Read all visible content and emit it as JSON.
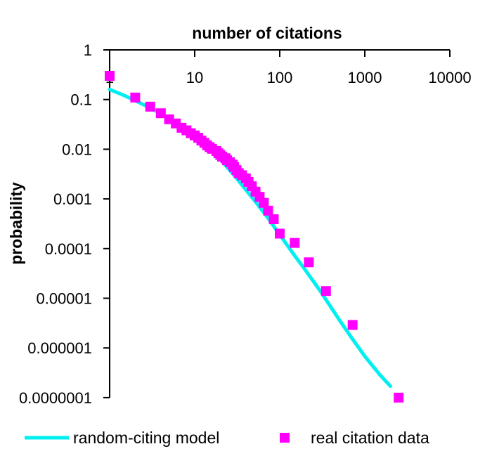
{
  "chart_data": {
    "type": "scatter",
    "xlabel": "number of citations",
    "ylabel": "probability",
    "xscale": "log",
    "yscale": "log",
    "xlim": [
      1,
      10000
    ],
    "ylim": [
      1e-07,
      1
    ],
    "x_axis_position": "top",
    "grid": false,
    "legend_position": "bottom",
    "x_tick_labels": [
      "1",
      "10",
      "100",
      "1000",
      "10000"
    ],
    "y_tick_labels": [
      "1",
      "0.1",
      "0.01",
      "0.001",
      "0.0001",
      "0.00001",
      "0.000001",
      "0.0000001"
    ],
    "series": [
      {
        "name": "random-citing model",
        "kind": "line",
        "color": "#00f0f0",
        "points": [
          [
            1,
            0.16
          ],
          [
            1.5,
            0.12
          ],
          [
            2,
            0.095
          ],
          [
            3,
            0.068
          ],
          [
            4,
            0.052
          ],
          [
            5,
            0.042
          ],
          [
            7,
            0.029
          ],
          [
            10,
            0.019
          ],
          [
            14,
            0.0115
          ],
          [
            20,
            0.0063
          ],
          [
            30,
            0.0028
          ],
          [
            50,
            0.00095
          ],
          [
            70,
            0.00045
          ],
          [
            100,
            0.00019
          ],
          [
            150,
            7.2e-05
          ],
          [
            200,
            3.7e-05
          ],
          [
            300,
            1.4e-05
          ],
          [
            500,
            3.7e-06
          ],
          [
            700,
            1.6e-06
          ],
          [
            1000,
            6.8e-07
          ],
          [
            1500,
            2.9e-07
          ],
          [
            2000,
            1.7e-07
          ]
        ]
      },
      {
        "name": "real citation data",
        "kind": "scatter",
        "color": "#ff00ff",
        "points": [
          [
            1,
            0.3
          ],
          [
            2,
            0.11
          ],
          [
            3,
            0.072
          ],
          [
            4,
            0.053
          ],
          [
            5,
            0.04
          ],
          [
            6,
            0.033
          ],
          [
            7,
            0.027
          ],
          [
            8,
            0.024
          ],
          [
            9,
            0.021
          ],
          [
            10,
            0.019
          ],
          [
            11,
            0.017
          ],
          [
            12,
            0.015
          ],
          [
            13,
            0.0135
          ],
          [
            14,
            0.012
          ],
          [
            15,
            0.011
          ],
          [
            16,
            0.0102
          ],
          [
            18,
            0.0092
          ],
          [
            19,
            0.0083
          ],
          [
            20,
            0.0077
          ],
          [
            21,
            0.0071
          ],
          [
            23,
            0.0066
          ],
          [
            24,
            0.006
          ],
          [
            26,
            0.0055
          ],
          [
            28,
            0.0049
          ],
          [
            29,
            0.0044
          ],
          [
            31,
            0.0038
          ],
          [
            33,
            0.0033
          ],
          [
            36,
            0.003
          ],
          [
            40,
            0.0026
          ],
          [
            43,
            0.0022
          ],
          [
            47,
            0.0018
          ],
          [
            52,
            0.0014
          ],
          [
            58,
            0.0011
          ],
          [
            65,
            0.00083
          ],
          [
            73,
            0.00058
          ],
          [
            85,
            0.00039
          ],
          [
            100,
            0.0002
          ],
          [
            150,
            0.00013
          ],
          [
            220,
            5.3e-05
          ],
          [
            350,
            1.4e-05
          ],
          [
            720,
            2.9e-06
          ],
          [
            2500,
            1e-07
          ]
        ]
      }
    ]
  }
}
